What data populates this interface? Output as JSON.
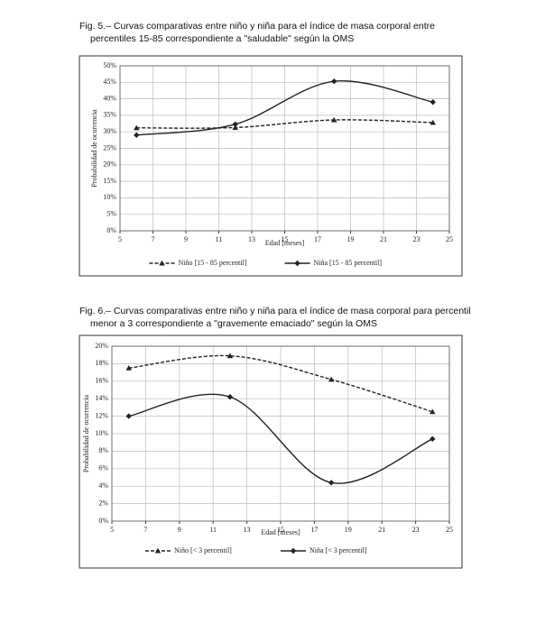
{
  "chart_data": [
    {
      "type": "line",
      "title": "Fig. 5.– Curvas comparativas entre niño y niña para el índice de masa corporal entre percentiles 15-85 correspondiente a \"saludable\" según la OMS",
      "x_label": "Edad [meses]",
      "y_label": "Probabilidad de ocurrencia",
      "x": [
        6,
        12,
        18,
        24
      ],
      "series": [
        {
          "name": "Niño [15 - 85 percentil]",
          "color": "#222222",
          "marker": "triangle",
          "dashed": true,
          "values": [
            31.2,
            31.3,
            33.6,
            32.8
          ]
        },
        {
          "name": "Niña [15 - 85 percentil]",
          "color": "#222222",
          "marker": "diamond",
          "dashed": false,
          "values": [
            29,
            32.3,
            45.3,
            39
          ]
        }
      ],
      "xlim": [
        5,
        25
      ],
      "xticks": [
        5,
        7,
        9,
        11,
        13,
        15,
        17,
        19,
        21,
        23,
        25
      ],
      "ylim": [
        0,
        50
      ],
      "yticks": [
        {
          "value": 0,
          "label": "0%"
        },
        {
          "value": 5,
          "label": "5%"
        },
        {
          "value": 10,
          "label": "10%"
        },
        {
          "value": 15,
          "label": "15%"
        },
        {
          "value": 20,
          "label": "20%"
        },
        {
          "value": 25,
          "label": "25%"
        },
        {
          "value": 30,
          "label": "30%"
        },
        {
          "value": 35,
          "label": "35%"
        },
        {
          "value": 40,
          "label": "40%"
        },
        {
          "value": 45,
          "label": "45%"
        },
        {
          "value": 50,
          "label": "50%"
        }
      ],
      "grid": true,
      "legend": "bottom"
    },
    {
      "type": "line",
      "title": "Fig. 6.– Curvas comparativas entre niño y niña para el índice de masa corporal para percentil menor a 3 correspondiente a \"gravemente emaciado\" según la OMS",
      "x_label": "Edad [meses]",
      "y_label": "Probabilidad de ocurrencia",
      "x": [
        6,
        12,
        18,
        24
      ],
      "series": [
        {
          "name": "Niño [< 3 percentil]",
          "color": "#222222",
          "marker": "triangle",
          "dashed": true,
          "values": [
            17.5,
            18.9,
            16.2,
            12.5
          ]
        },
        {
          "name": "Niña [< 3 percentil]",
          "color": "#222222",
          "marker": "diamond",
          "dashed": false,
          "values": [
            12,
            14.2,
            4.4,
            9.4
          ]
        }
      ],
      "xlim": [
        5,
        25
      ],
      "xticks": [
        5,
        7,
        9,
        11,
        13,
        15,
        17,
        19,
        21,
        23,
        25
      ],
      "ylim": [
        0,
        20
      ],
      "yticks": [
        {
          "value": 0,
          "label": "0%"
        },
        {
          "value": 2,
          "label": "2%"
        },
        {
          "value": 4,
          "label": "4%"
        },
        {
          "value": 6,
          "label": "6%"
        },
        {
          "value": 8,
          "label": "8%"
        },
        {
          "value": 10,
          "label": "10%"
        },
        {
          "value": 12,
          "label": "12%"
        },
        {
          "value": 14,
          "label": "14%"
        },
        {
          "value": 16,
          "label": "16%"
        },
        {
          "value": 18,
          "label": "18%"
        },
        {
          "value": 20,
          "label": "20%"
        }
      ],
      "grid": true,
      "legend": "bottom"
    }
  ]
}
